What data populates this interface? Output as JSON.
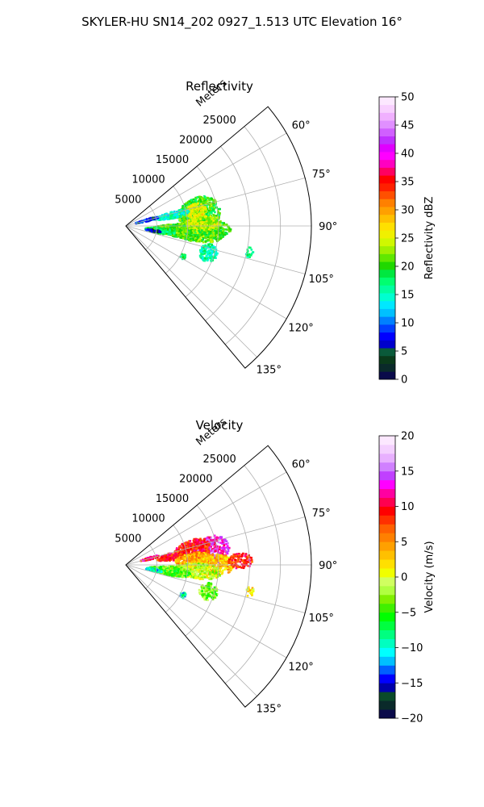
{
  "figure": {
    "suptitle": "SKYLER-HU  SN14_202  0927_1.513 UTC Elevation 16°"
  },
  "chart_data": [
    {
      "type": "polar-sector-radar",
      "title": "Reflectivity",
      "radial_label": "Meters",
      "radial_ticks": [
        "5000",
        "10000",
        "15000",
        "20000",
        "25000"
      ],
      "radial_range": [
        0,
        30000
      ],
      "angular_range_deg": [
        50,
        140
      ],
      "angular_ticks": [
        "60°",
        "75°",
        "90°",
        "105°",
        "120°",
        "135°"
      ],
      "grid": true,
      "colorbar": {
        "label": "Reflectivity dBZ",
        "range": [
          0,
          50
        ],
        "ticks": [
          "0",
          "5",
          "10",
          "15",
          "20",
          "25",
          "30",
          "35",
          "40",
          "45",
          "50"
        ],
        "colors": [
          "#0a0a4a",
          "#0a2a2a",
          "#0a3a1a",
          "#0a5a3a",
          "#0000cc",
          "#0000ff",
          "#0040ff",
          "#0080ff",
          "#00c0ff",
          "#00e8ff",
          "#00ffd0",
          "#00ffa0",
          "#00ff70",
          "#00e840",
          "#20d800",
          "#60e800",
          "#a0f000",
          "#d0f800",
          "#f0f000",
          "#ffe000",
          "#ffc000",
          "#ffa000",
          "#ff8000",
          "#ff5000",
          "#ff2000",
          "#ff0000",
          "#ff0060",
          "#ff00c0",
          "#ff00ff",
          "#e000ff",
          "#c030ff",
          "#d060ff",
          "#e090ff",
          "#f0b0ff",
          "#f8d0ff",
          "#fce8ff"
        ]
      },
      "echoes": [
        {
          "az": 80,
          "r": 12000,
          "ar": 3500,
          "aw": 12,
          "value": 20
        },
        {
          "az": 78,
          "r": 11500,
          "ar": 1800,
          "aw": 6,
          "value": 25
        },
        {
          "az": 77,
          "r": 7500,
          "ar": 3000,
          "aw": 4,
          "value": 15
        },
        {
          "az": 75,
          "r": 3500,
          "ar": 2000,
          "aw": 3,
          "value": 8
        },
        {
          "az": 92,
          "r": 12000,
          "ar": 5000,
          "aw": 6,
          "value": 20
        },
        {
          "az": 95,
          "r": 10000,
          "ar": 6000,
          "aw": 8,
          "value": 21
        },
        {
          "az": 98,
          "r": 5500,
          "ar": 2500,
          "aw": 5,
          "value": 18
        },
        {
          "az": 100,
          "r": 4500,
          "ar": 1200,
          "aw": 3,
          "value": 6
        },
        {
          "az": 88,
          "r": 12500,
          "ar": 3000,
          "aw": 5,
          "value": 24
        },
        {
          "az": 108,
          "r": 14000,
          "ar": 1500,
          "aw": 6,
          "value": 16
        },
        {
          "az": 102,
          "r": 20500,
          "ar": 600,
          "aw": 2.5,
          "value": 17
        },
        {
          "az": 118,
          "r": 10500,
          "ar": 500,
          "aw": 2.5,
          "value": 18
        }
      ]
    },
    {
      "type": "polar-sector-radar",
      "title": "Velocity",
      "radial_label": "Meters",
      "radial_ticks": [
        "5000",
        "10000",
        "15000",
        "20000",
        "25000"
      ],
      "radial_range": [
        0,
        30000
      ],
      "angular_range_deg": [
        50,
        140
      ],
      "angular_ticks": [
        "60°",
        "75°",
        "90°",
        "105°",
        "120°",
        "135°"
      ],
      "grid": true,
      "colorbar": {
        "label": "Velocity (m/s)",
        "range": [
          -20,
          20
        ],
        "ticks": [
          "−20",
          "−15",
          "−10",
          "−5",
          "0",
          "5",
          "10",
          "15",
          "20"
        ],
        "colors": [
          "#0a0a4a",
          "#0a2a2a",
          "#0a4a2a",
          "#0000aa",
          "#0000ff",
          "#0060ff",
          "#00c0ff",
          "#00ffff",
          "#00ffc0",
          "#00ff80",
          "#00ff40",
          "#00ff00",
          "#40f000",
          "#80f000",
          "#b0ff40",
          "#d0ff60",
          "#f0ff00",
          "#ffe000",
          "#ffc000",
          "#ffa000",
          "#ff8000",
          "#ff6000",
          "#ff3000",
          "#ff0000",
          "#ff0050",
          "#ff00a0",
          "#ff00ff",
          "#c040ff",
          "#d080ff",
          "#e8b0ff",
          "#f4d0ff",
          "#fce8ff"
        ]
      },
      "echoes": [
        {
          "az": 80,
          "r": 14000,
          "ar": 3000,
          "aw": 9,
          "value": 13
        },
        {
          "az": 77,
          "r": 11000,
          "ar": 3000,
          "aw": 8,
          "value": 9
        },
        {
          "az": 80,
          "r": 7500,
          "ar": 2500,
          "aw": 5,
          "value": 9
        },
        {
          "az": 75,
          "r": 4000,
          "ar": 1500,
          "aw": 3,
          "value": 10
        },
        {
          "az": 86,
          "r": 11000,
          "ar": 3000,
          "aw": 6,
          "value": 4
        },
        {
          "az": 90,
          "r": 14000,
          "ar": 3500,
          "aw": 7,
          "value": 3
        },
        {
          "az": 95,
          "r": 11000,
          "ar": 4500,
          "aw": 6,
          "value": -1
        },
        {
          "az": 98,
          "r": 7000,
          "ar": 3500,
          "aw": 6,
          "value": -4
        },
        {
          "az": 100,
          "r": 4500,
          "ar": 1500,
          "aw": 3,
          "value": -10
        },
        {
          "az": 88,
          "r": 18500,
          "ar": 2000,
          "aw": 4,
          "value": 9
        },
        {
          "az": 108,
          "r": 14000,
          "ar": 1500,
          "aw": 6,
          "value": -3
        },
        {
          "az": 102,
          "r": 20500,
          "ar": 600,
          "aw": 2.5,
          "value": 2
        },
        {
          "az": 118,
          "r": 10500,
          "ar": 500,
          "aw": 2.5,
          "value": -10
        }
      ]
    }
  ]
}
